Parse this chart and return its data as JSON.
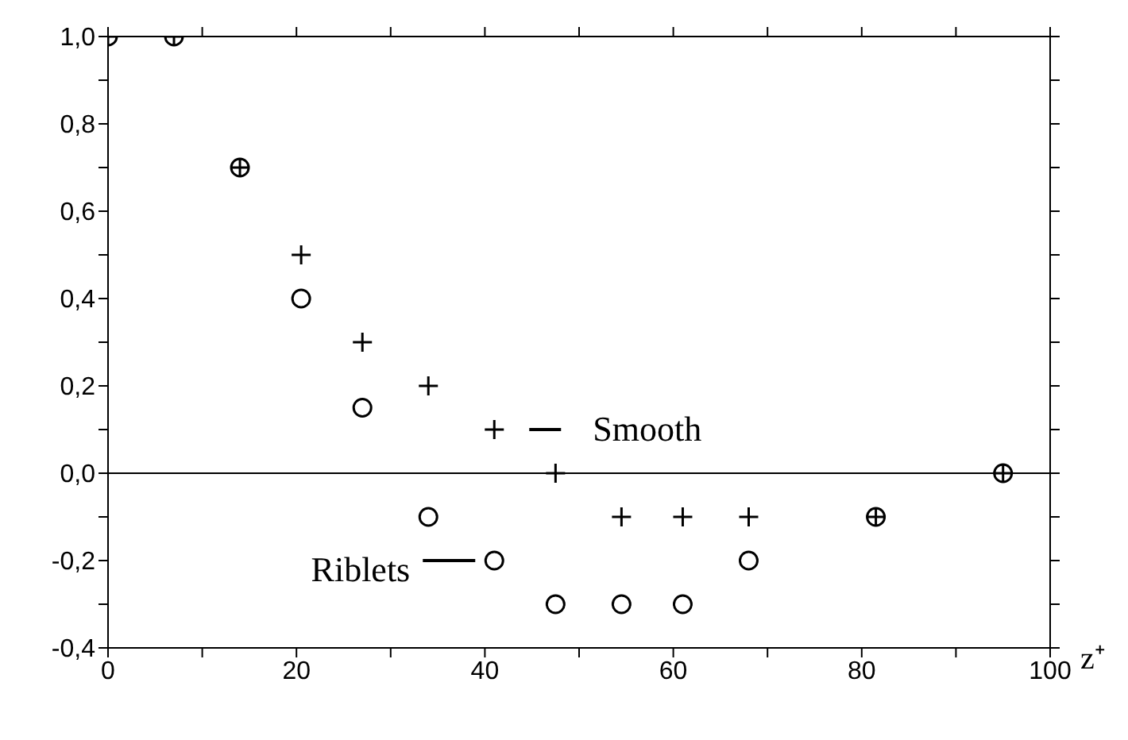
{
  "chart_data": {
    "type": "scatter",
    "xlabel": "z⁺",
    "x": [
      0,
      7,
      14,
      20.5,
      27,
      34,
      41,
      47.5,
      54.5,
      61,
      68,
      81.5,
      95
    ],
    "series": [
      {
        "name": "Smooth",
        "color": "#000000",
        "marker": "cross",
        "values": [
          1.0,
          1.0,
          0.7,
          0.5,
          0.3,
          0.2,
          0.1,
          0.0,
          -0.1,
          -0.1,
          -0.1,
          -0.1,
          0.0
        ]
      },
      {
        "name": "Riblets",
        "color": "#000000",
        "marker": "circle",
        "values": [
          1.0,
          1.0,
          0.7,
          0.4,
          0.15,
          -0.1,
          -0.2,
          -0.3,
          -0.3,
          -0.3,
          -0.2,
          -0.1,
          0.0
        ]
      }
    ],
    "xlim": [
      0,
      100
    ],
    "xticks": [
      0,
      {
        "value": 10,
        "label": null
      },
      20,
      {
        "value": 30,
        "label": null
      },
      40,
      {
        "value": 50,
        "label": null
      },
      60,
      {
        "value": 70,
        "label": null
      },
      80,
      {
        "value": 90,
        "label": null
      },
      100
    ],
    "ylim": [
      -0.4,
      1.0
    ],
    "yticks": [
      {
        "value": -0.4,
        "label": "-0,4"
      },
      {
        "value": -0.3,
        "label": null
      },
      {
        "value": -0.2,
        "label": "-0,2"
      },
      {
        "value": -0.1,
        "label": null
      },
      {
        "value": 0,
        "label": "0,0"
      },
      {
        "value": 0.1,
        "label": null
      },
      {
        "value": 0.2,
        "label": "0,2"
      },
      {
        "value": 0.3,
        "label": null
      },
      {
        "value": 0.4,
        "label": "0,4"
      },
      {
        "value": 0.5,
        "label": null
      },
      {
        "value": 0.6,
        "label": "0,6"
      },
      {
        "value": 0.7,
        "label": null
      },
      {
        "value": 0.8,
        "label": "0,8"
      },
      {
        "value": 0.9,
        "label": null
      },
      {
        "value": 1.0,
        "label": "1,0"
      }
    ],
    "ref_lines": [
      {
        "axis": "y",
        "value": 0,
        "color": "#000000"
      }
    ],
    "legend": "center"
  }
}
